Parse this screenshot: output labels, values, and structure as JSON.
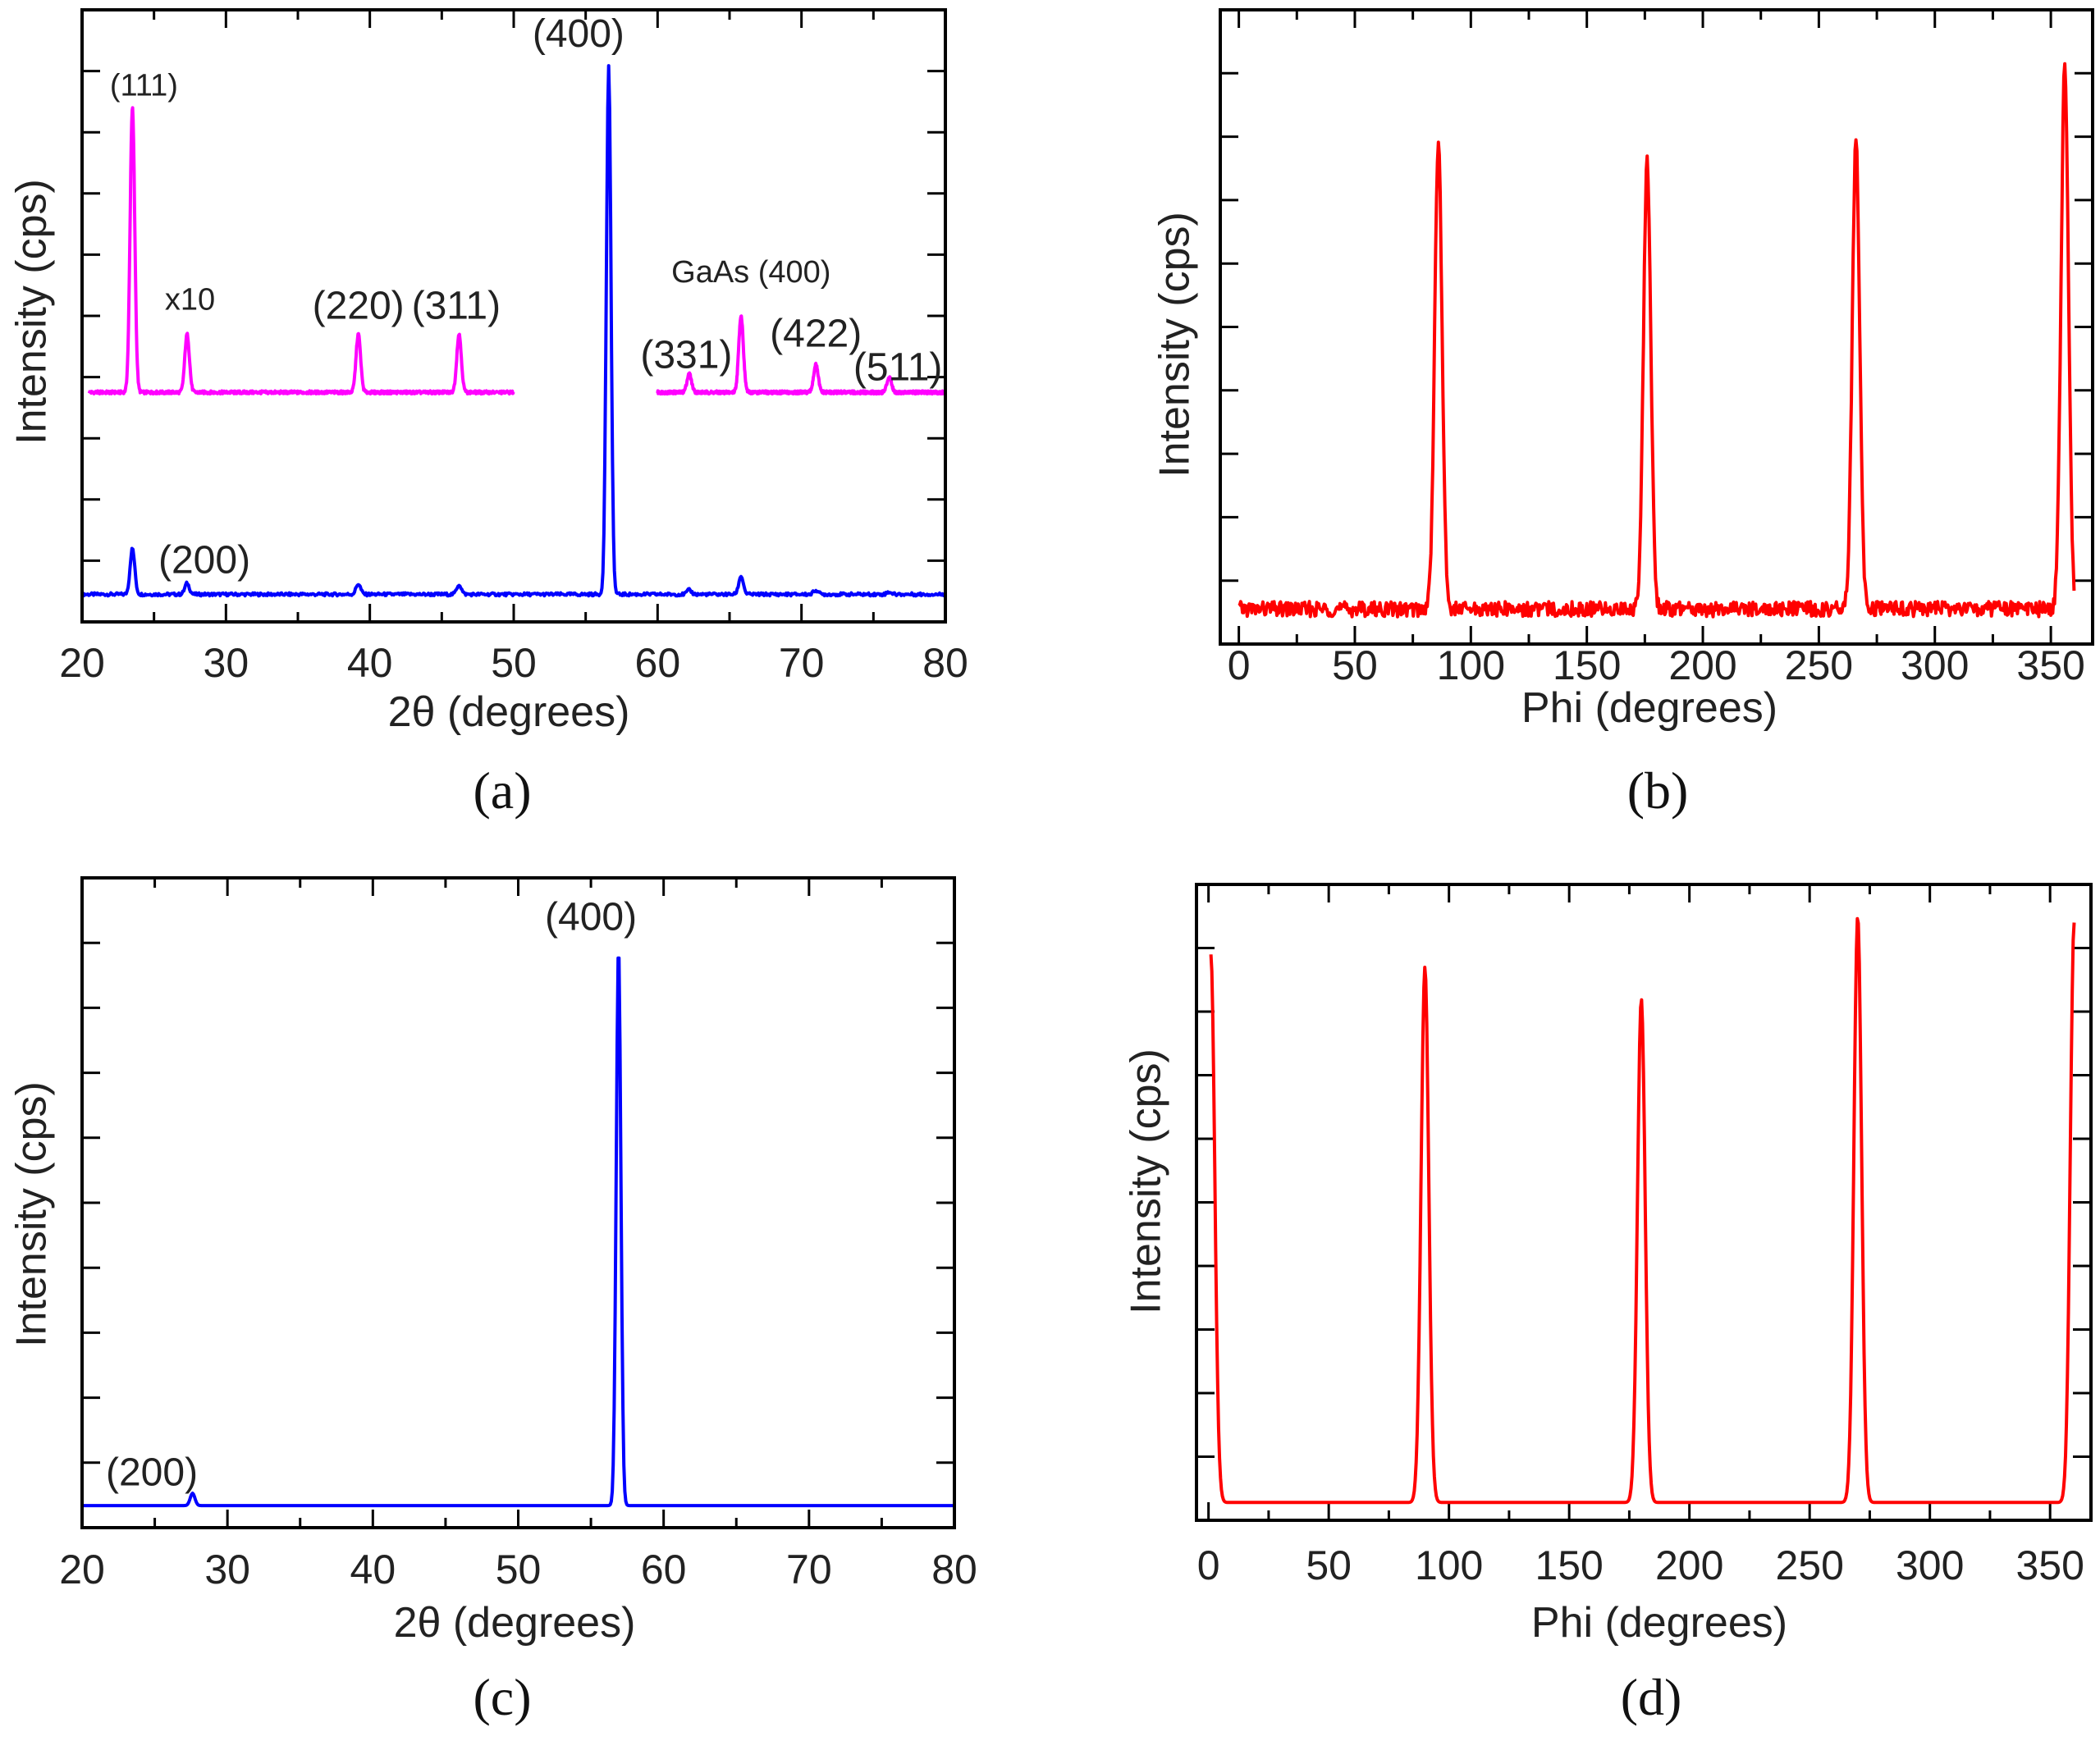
{
  "chart_data": [
    {
      "id": "a",
      "type": "line",
      "caption": "(a)",
      "xlabel": "2θ (degrees)",
      "ylabel": "Intensity (cps)",
      "xlim": [
        20,
        80
      ],
      "xticks": [
        20,
        30,
        40,
        50,
        60,
        70,
        80
      ],
      "ylim": [
        0,
        100
      ],
      "series": [
        {
          "color": "#0000ff",
          "baseline": 4.5,
          "segments": [
            [
              20,
              80
            ]
          ],
          "peaks": [
            [
              23.5,
              12
            ],
            [
              27.3,
              6.3
            ],
            [
              39.2,
              6.2
            ],
            [
              46.2,
              6.1
            ],
            [
              56.6,
              91
            ],
            [
              62.2,
              5.2
            ],
            [
              65.8,
              7.5
            ],
            [
              71.0,
              5.2
            ],
            [
              76.1,
              4.9
            ]
          ]
        },
        {
          "color": "#ff00ff",
          "baseline": 37.5,
          "segments": [
            [
              20.5,
              50
            ],
            [
              60,
              80
            ]
          ],
          "peaks": [
            [
              23.5,
              84
            ],
            [
              27.3,
              47
            ],
            [
              39.2,
              47
            ],
            [
              46.2,
              47
            ],
            [
              62.2,
              40.5
            ],
            [
              65.8,
              50
            ],
            [
              71.0,
              42
            ],
            [
              76.1,
              40
            ]
          ]
        }
      ],
      "annotations": [
        {
          "text": "(111)",
          "x": 24.3,
          "y": 86,
          "big": false
        },
        {
          "text": "x10",
          "x": 27.5,
          "y": 51,
          "big": false
        },
        {
          "text": "(220)",
          "x": 39.2,
          "y": 49.5,
          "big": true
        },
        {
          "text": "(311)",
          "x": 46.0,
          "y": 49.5,
          "big": true
        },
        {
          "text": "GaAs (400)",
          "x": 66.5,
          "y": 55.5,
          "big": false
        },
        {
          "text": "(331)",
          "x": 62.0,
          "y": 41.5,
          "big": true
        },
        {
          "text": "(422)",
          "x": 71.0,
          "y": 45,
          "big": true
        },
        {
          "text": "(511)",
          "x": 76.7,
          "y": 39.5,
          "big": true
        },
        {
          "text": "(400)",
          "x": 54.5,
          "y": 94,
          "big": true
        },
        {
          "text": "(200)",
          "x": 28.5,
          "y": 8,
          "big": true
        }
      ]
    },
    {
      "id": "b",
      "type": "line",
      "caption": "(b)",
      "xlabel": "Phi (degrees)",
      "ylabel": "Intensity (cps)",
      "xlim": [
        -8,
        368
      ],
      "xticks": [
        0,
        50,
        100,
        150,
        200,
        250,
        300,
        350
      ],
      "ylim": [
        0,
        100
      ],
      "series": [
        {
          "color": "#ff0000",
          "baseline": 5.5,
          "noise": 1.2,
          "segments": [
            [
              0,
              360
            ]
          ],
          "peaks": [
            [
              86,
              79
            ],
            [
              176,
              76
            ],
            [
              266,
              79
            ],
            [
              356,
              91
            ]
          ]
        }
      ],
      "annotations": []
    },
    {
      "id": "c",
      "type": "line",
      "caption": "(c)",
      "xlabel": "2θ (degrees)",
      "ylabel": "Intensity (cps)",
      "xlim": [
        20,
        80
      ],
      "xticks": [
        20,
        30,
        40,
        50,
        60,
        70,
        80
      ],
      "ylim": [
        0,
        100
      ],
      "series": [
        {
          "color": "#0000ff",
          "baseline": 3.4,
          "segments": [
            [
              20,
              80
            ]
          ],
          "peaks": [
            [
              27.6,
              5.3
            ],
            [
              56.9,
              89.5
            ]
          ]
        }
      ],
      "annotations": [
        {
          "text": "(400)",
          "x": 55.0,
          "y": 92,
          "big": true
        },
        {
          "text": "(200)",
          "x": 24.8,
          "y": 6.5,
          "big": true
        }
      ]
    },
    {
      "id": "d",
      "type": "line",
      "caption": "(d)",
      "xlabel": "Phi (degrees)",
      "ylabel": "Intensity (cps)",
      "xlim": [
        -5,
        367
      ],
      "xticks": [
        0,
        50,
        100,
        150,
        200,
        250,
        300,
        350
      ],
      "ylim": [
        0,
        100
      ],
      "series": [
        {
          "color": "#ff0000",
          "baseline": 2.8,
          "noise": 0,
          "segments": [
            [
              1,
              360
            ]
          ],
          "peaks": [
            [
              1,
              89
            ],
            [
              90,
              87
            ],
            [
              180,
              82
            ],
            [
              270,
              95
            ],
            [
              360,
              94
            ]
          ]
        }
      ],
      "annotations": []
    }
  ]
}
